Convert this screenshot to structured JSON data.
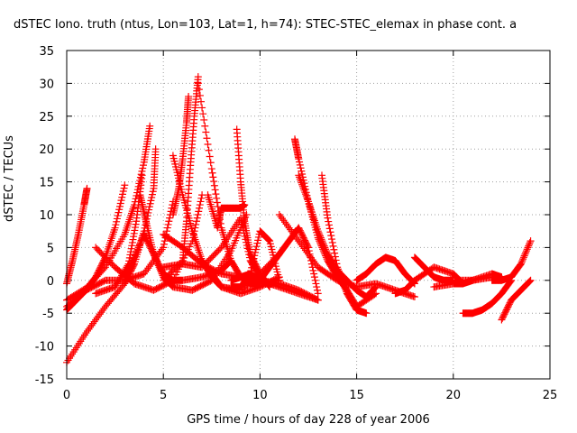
{
  "chart_data": {
    "type": "scatter",
    "title": "dSTEC Iono. truth (ntus, Lon=103, Lat=1, h=74): STEC-STEC_elemax in phase cont. a",
    "xlabel": "GPS time / hours of day 228 of year 2006",
    "ylabel": "dSTEC  / TECUs",
    "xlim": [
      0,
      25
    ],
    "ylim": [
      -15,
      35
    ],
    "xticks": [
      "0",
      "5",
      "10",
      "15",
      "20",
      "25"
    ],
    "yticks": [
      "-15",
      "-10",
      "-5",
      "0",
      "5",
      "10",
      "15",
      "20",
      "25",
      "30",
      "35"
    ],
    "grid": true,
    "marker": "+",
    "color": "#ff0000",
    "series": [
      {
        "x": [
          0.0,
          0.3,
          0.6,
          0.9,
          1.05
        ],
        "y": [
          -0.5,
          3.0,
          7.0,
          11.5,
          14.0
        ]
      },
      {
        "x": [
          0.0,
          1.0,
          2.0,
          3.0,
          3.5,
          4.0,
          4.3
        ],
        "y": [
          -3.0,
          -1.2,
          2.0,
          7.0,
          11.5,
          18.0,
          23.5
        ]
      },
      {
        "x": [
          0.0,
          1.0,
          2.0,
          3.0,
          3.5,
          4.0,
          4.5,
          4.6
        ],
        "y": [
          -12.5,
          -8.0,
          -4.0,
          -0.5,
          2.5,
          7.5,
          14.0,
          20.0
        ]
      },
      {
        "x": [
          0.0,
          0.5,
          1.0,
          1.5,
          2.0,
          2.5,
          3.0
        ],
        "y": [
          -4.5,
          -3.0,
          -1.5,
          0.5,
          3.5,
          8.0,
          14.5
        ]
      },
      {
        "x": [
          1.5,
          2.5,
          3.2,
          3.6,
          3.9
        ],
        "y": [
          -2.0,
          -1.0,
          2.5,
          9.0,
          16.0
        ]
      },
      {
        "x": [
          1.5,
          2.5,
          3.5,
          4.5,
          5.5,
          6.5,
          7.0
        ],
        "y": [
          5.0,
          2.0,
          -0.5,
          -1.5,
          0.0,
          6.0,
          13.0
        ]
      },
      {
        "x": [
          0.0,
          1.0,
          2.0,
          3.0,
          4.0,
          5.0,
          5.5
        ],
        "y": [
          -4.0,
          -1.5,
          0.0,
          0.0,
          1.0,
          5.0,
          12.0
        ]
      },
      {
        "x": [
          3.0,
          3.5,
          4.0,
          4.5,
          5.0,
          5.5,
          6.0,
          7.0,
          8.0,
          8.5
        ],
        "y": [
          0.5,
          3.5,
          7.0,
          4.0,
          1.0,
          0.0,
          0.0,
          0.5,
          1.5,
          3.0
        ]
      },
      {
        "x": [
          3.8,
          4.1,
          4.5,
          5.0,
          5.5,
          6.5,
          7.5,
          8.5,
          9.3
        ],
        "y": [
          13.0,
          9.0,
          4.0,
          0.5,
          -1.0,
          -1.5,
          0.0,
          4.5,
          10.0
        ]
      },
      {
        "x": [
          5.0,
          6.0,
          7.0,
          8.0,
          9.0,
          9.5,
          10.0
        ],
        "y": [
          2.0,
          2.5,
          2.0,
          5.0,
          9.5,
          3.0,
          0.5
        ]
      },
      {
        "x": [
          5.0,
          6.0,
          7.0,
          8.0,
          9.0,
          10.0,
          11.0,
          12.0,
          13.0
        ],
        "y": [
          7.0,
          5.0,
          2.5,
          1.0,
          0.5,
          0.0,
          -0.5,
          -1.5,
          -3.0
        ]
      },
      {
        "x": [
          5.0,
          6.0,
          6.2,
          6.4,
          6.6,
          6.8
        ],
        "y": [
          0.0,
          3.0,
          9.0,
          17.5,
          25.0,
          31.0
        ]
      },
      {
        "x": [
          5.5,
          5.8,
          6.0,
          6.2,
          6.3
        ],
        "y": [
          10.0,
          14.0,
          18.5,
          24.0,
          28.0
        ]
      },
      {
        "x": [
          5.5,
          6.0,
          6.5,
          7.0,
          7.5,
          8.0,
          9.0,
          10.0,
          11.0
        ],
        "y": [
          19.0,
          13.0,
          7.5,
          3.0,
          0.5,
          -1.0,
          -2.0,
          -1.0,
          0.5
        ]
      },
      {
        "x": [
          6.8,
          7.5,
          8.0,
          8.5,
          9.0,
          9.5,
          10.0,
          11.0
        ],
        "y": [
          30.0,
          17.0,
          8.0,
          3.0,
          0.5,
          -0.5,
          -0.5,
          0.0
        ]
      },
      {
        "x": [
          7.3,
          7.8,
          8.0,
          8.5,
          9.0,
          9.2
        ],
        "y": [
          13.0,
          8.0,
          11.0,
          11.0,
          11.0,
          11.5
        ]
      },
      {
        "x": [
          7.0,
          7.5,
          8.0,
          9.0,
          10.0,
          11.0
        ],
        "y": [
          3.0,
          1.0,
          -1.0,
          -1.5,
          1.0,
          4.0
        ]
      },
      {
        "x": [
          8.5,
          9.0,
          9.5,
          10.0,
          11.0,
          12.0,
          13.0
        ],
        "y": [
          0.0,
          0.5,
          1.0,
          0.0,
          -1.0,
          -2.0,
          -3.0
        ]
      },
      {
        "x": [
          8.8,
          9.0,
          9.2,
          9.5,
          10.0,
          10.5
        ],
        "y": [
          23.0,
          15.0,
          9.0,
          4.0,
          1.0,
          -1.0
        ]
      },
      {
        "x": [
          8.5,
          9.0,
          9.5,
          10.0,
          10.5,
          11.0
        ],
        "y": [
          -1.0,
          -1.0,
          1.0,
          7.5,
          6.0,
          0.0
        ]
      },
      {
        "x": [
          10.0,
          10.5,
          11.0,
          11.5,
          12.0,
          12.5,
          13.0
        ],
        "y": [
          0.0,
          2.0,
          4.0,
          6.0,
          8.0,
          5.0,
          -2.0
        ]
      },
      {
        "x": [
          11.8,
          12.0,
          12.5,
          13.0,
          13.5,
          14.0,
          14.5,
          15.0,
          16.0
        ],
        "y": [
          21.5,
          18.5,
          12.0,
          6.5,
          3.0,
          0.5,
          -1.5,
          -4.0,
          -2.0
        ]
      },
      {
        "x": [
          12.0,
          12.5,
          13.0,
          13.5,
          14.0,
          14.5,
          15.0,
          15.5,
          16.0
        ],
        "y": [
          16.0,
          12.0,
          7.5,
          4.0,
          1.5,
          0.0,
          -1.5,
          -2.5,
          -1.0
        ]
      },
      {
        "x": [
          13.2,
          13.5,
          14.0,
          14.5,
          15.0,
          15.5
        ],
        "y": [
          16.0,
          9.5,
          2.0,
          -2.0,
          -4.5,
          -5.0
        ]
      },
      {
        "x": [
          11.0,
          12.0,
          13.0,
          14.0,
          15.0,
          16.0,
          17.0,
          18.0
        ],
        "y": [
          10.0,
          6.0,
          2.0,
          0.0,
          -1.0,
          -0.5,
          -1.5,
          -2.5
        ]
      },
      {
        "x": [
          15.0,
          15.5,
          16.0,
          16.5,
          17.0,
          17.5,
          18.0
        ],
        "y": [
          0.0,
          1.0,
          2.5,
          3.5,
          3.0,
          1.0,
          -0.5
        ]
      },
      {
        "x": [
          17.0,
          17.5,
          18.0,
          19.0,
          20.0,
          20.5
        ],
        "y": [
          -2.0,
          -1.5,
          0.0,
          2.0,
          1.0,
          -0.5
        ]
      },
      {
        "x": [
          18.0,
          18.5,
          19.0,
          19.5,
          20.0,
          21.0,
          22.0
        ],
        "y": [
          3.5,
          2.0,
          0.5,
          0.0,
          0.0,
          0.0,
          0.5
        ]
      },
      {
        "x": [
          19.0,
          20.0,
          20.5,
          21.0,
          22.0,
          22.5
        ],
        "y": [
          -1.0,
          -0.5,
          -0.5,
          0.0,
          1.0,
          0.5
        ]
      },
      {
        "x": [
          20.5,
          21.0,
          21.5,
          22.0,
          22.5,
          23.0
        ],
        "y": [
          -5.0,
          -5.0,
          -4.5,
          -3.5,
          -2.0,
          0.0
        ]
      },
      {
        "x": [
          22.0,
          22.5,
          23.0,
          23.5,
          24.0
        ],
        "y": [
          0.0,
          0.0,
          0.5,
          2.5,
          6.0
        ]
      },
      {
        "x": [
          22.5,
          23.0,
          23.5,
          24.0
        ],
        "y": [
          -6.0,
          -3.0,
          -1.5,
          0.0
        ]
      }
    ]
  }
}
